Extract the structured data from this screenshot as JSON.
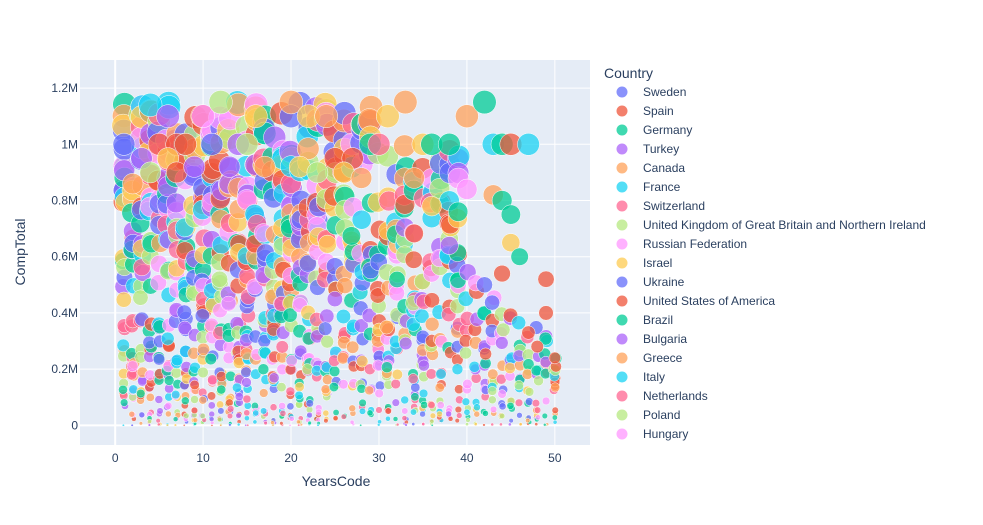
{
  "chart_data": {
    "type": "scatter",
    "xlabel": "YearsCode",
    "ylabel": "CompTotal",
    "xlim": [
      -4,
      54
    ],
    "ylim": [
      -70000,
      1300000
    ],
    "x_ticks": [
      0,
      10,
      20,
      30,
      40,
      50
    ],
    "y_ticks": [
      {
        "value": 0,
        "label": "0"
      },
      {
        "value": 200000,
        "label": "0.2M"
      },
      {
        "value": 400000,
        "label": "0.4M"
      },
      {
        "value": 600000,
        "label": "0.6M"
      },
      {
        "value": 800000,
        "label": "0.8M"
      },
      {
        "value": 1000000,
        "label": "1M"
      },
      {
        "value": 1200000,
        "label": "1.2M"
      }
    ],
    "grid": true,
    "legend_title": "Country",
    "legend_position": "right",
    "marker_size": "CompTotal",
    "series": [
      {
        "name": "Sweden",
        "color": "#636efa"
      },
      {
        "name": "Spain",
        "color": "#EF553B"
      },
      {
        "name": "Germany",
        "color": "#00cc96"
      },
      {
        "name": "Turkey",
        "color": "#ab63fa"
      },
      {
        "name": "Canada",
        "color": "#FFA15A"
      },
      {
        "name": "France",
        "color": "#19d3f3"
      },
      {
        "name": "Switzerland",
        "color": "#FF6692"
      },
      {
        "name": "United Kingdom of Great Britain and Northern Ireland",
        "color": "#B6E880"
      },
      {
        "name": "Russian Federation",
        "color": "#FF97FF"
      },
      {
        "name": "Israel",
        "color": "#FECB52"
      },
      {
        "name": "Ukraine",
        "color": "#636efa"
      },
      {
        "name": "United States of America",
        "color": "#EF553B"
      },
      {
        "name": "Brazil",
        "color": "#00cc96"
      },
      {
        "name": "Bulgaria",
        "color": "#ab63fa"
      },
      {
        "name": "Greece",
        "color": "#FFA15A"
      },
      {
        "name": "Italy",
        "color": "#19d3f3"
      },
      {
        "name": "Netherlands",
        "color": "#FF6692"
      },
      {
        "name": "Poland",
        "color": "#B6E880"
      },
      {
        "name": "Hungary",
        "color": "#FF97FF"
      }
    ],
    "points": [
      {
        "x": 1,
        "y": 1000000,
        "s": 0
      },
      {
        "x": 4,
        "y": 1140000,
        "s": 5
      },
      {
        "x": 5,
        "y": 1000000,
        "s": 1
      },
      {
        "x": 6,
        "y": 1100000,
        "s": 3
      },
      {
        "x": 7,
        "y": 1000000,
        "s": 1
      },
      {
        "x": 8,
        "y": 1000000,
        "s": 11
      },
      {
        "x": 10,
        "y": 1100000,
        "s": 8
      },
      {
        "x": 11,
        "y": 1000000,
        "s": 10
      },
      {
        "x": 12,
        "y": 1150000,
        "s": 7
      },
      {
        "x": 14,
        "y": 1000000,
        "s": 3
      },
      {
        "x": 15,
        "y": 1000000,
        "s": 17
      },
      {
        "x": 16,
        "y": 1100000,
        "s": 9
      },
      {
        "x": 20,
        "y": 1100000,
        "s": 10
      },
      {
        "x": 20,
        "y": 1150000,
        "s": 14
      },
      {
        "x": 22,
        "y": 1100000,
        "s": 9
      },
      {
        "x": 24,
        "y": 1100000,
        "s": 4
      },
      {
        "x": 25,
        "y": 950000,
        "s": 11
      },
      {
        "x": 27,
        "y": 950000,
        "s": 1
      },
      {
        "x": 29,
        "y": 1000000,
        "s": 2
      },
      {
        "x": 30,
        "y": 1000000,
        "s": 16
      },
      {
        "x": 31,
        "y": 1100000,
        "s": 9
      },
      {
        "x": 33,
        "y": 1150000,
        "s": 14
      },
      {
        "x": 35,
        "y": 1000000,
        "s": 9
      },
      {
        "x": 36,
        "y": 1000000,
        "s": 2
      },
      {
        "x": 38,
        "y": 1000000,
        "s": 12
      },
      {
        "x": 40,
        "y": 1100000,
        "s": 4
      },
      {
        "x": 42,
        "y": 1150000,
        "s": 12
      },
      {
        "x": 43,
        "y": 1000000,
        "s": 5
      },
      {
        "x": 44,
        "y": 1000000,
        "s": 2
      },
      {
        "x": 45,
        "y": 1000000,
        "s": 11
      },
      {
        "x": 47,
        "y": 1000000,
        "s": 5
      },
      {
        "x": 40,
        "y": 840000,
        "s": 8
      },
      {
        "x": 43,
        "y": 820000,
        "s": 4
      },
      {
        "x": 44,
        "y": 800000,
        "s": 2
      },
      {
        "x": 45,
        "y": 750000,
        "s": 12
      },
      {
        "x": 45,
        "y": 650000,
        "s": 9
      },
      {
        "x": 46,
        "y": 600000,
        "s": 2
      },
      {
        "x": 42,
        "y": 500000,
        "s": 10
      },
      {
        "x": 44,
        "y": 540000,
        "s": 11
      },
      {
        "x": 49,
        "y": 520000,
        "s": 1
      },
      {
        "x": 49,
        "y": 400000,
        "s": 11
      },
      {
        "x": 50,
        "y": 240000,
        "s": 11
      },
      {
        "x": 48,
        "y": 280000,
        "s": 1
      },
      {
        "x": 47,
        "y": 330000,
        "s": 11
      },
      {
        "x": 39,
        "y": 760000,
        "s": 2
      },
      {
        "x": 38,
        "y": 640000,
        "s": 3
      },
      {
        "x": 36,
        "y": 780000,
        "s": 9
      },
      {
        "x": 34,
        "y": 880000,
        "s": 14
      },
      {
        "x": 2,
        "y": 860000,
        "s": 4
      },
      {
        "x": 3,
        "y": 950000,
        "s": 3
      },
      {
        "x": 4,
        "y": 900000,
        "s": 7
      },
      {
        "x": 6,
        "y": 950000,
        "s": 9
      },
      {
        "x": 7,
        "y": 900000,
        "s": 1
      },
      {
        "x": 9,
        "y": 920000,
        "s": 3
      },
      {
        "x": 13,
        "y": 920000,
        "s": 3
      },
      {
        "x": 17,
        "y": 920000,
        "s": 4
      },
      {
        "x": 21,
        "y": 920000,
        "s": 9
      },
      {
        "x": 23,
        "y": 900000,
        "s": 7
      },
      {
        "x": 26,
        "y": 900000,
        "s": 9
      },
      {
        "x": 28,
        "y": 880000,
        "s": 14
      }
    ],
    "cloud": {
      "x_range": [
        1,
        50
      ],
      "density_note": "dense cloud of bubbles, size proportional to CompTotal"
    }
  }
}
